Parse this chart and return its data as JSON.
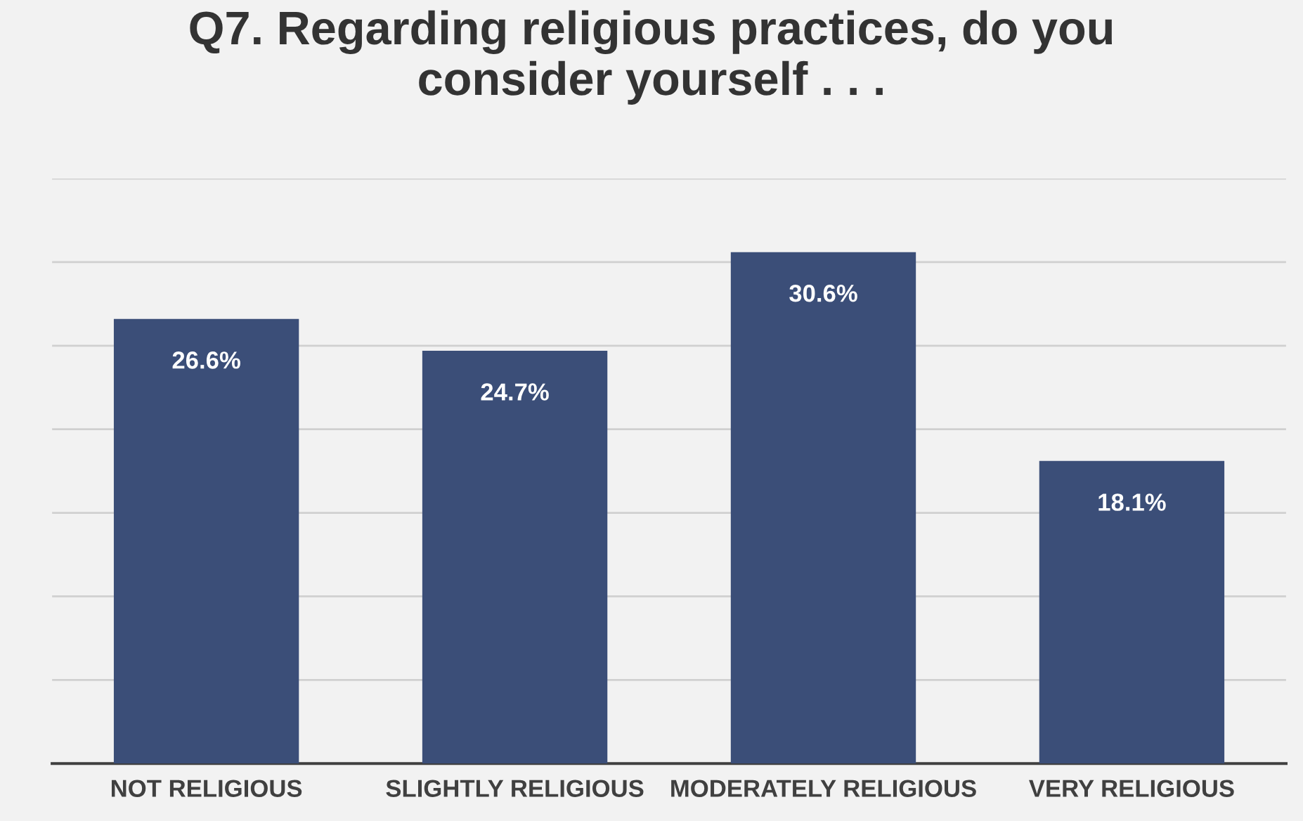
{
  "chart_data": {
    "type": "bar",
    "title": "Q7. Regarding religious practices, do you\nconsider yourself . . .",
    "categories": [
      "NOT RELIGIOUS",
      "SLIGHTLY RELIGIOUS",
      "MODERATELY RELIGIOUS",
      "VERY RELIGIOUS"
    ],
    "values": [
      26.6,
      24.7,
      30.6,
      18.1
    ],
    "value_labels": [
      "26.6%",
      "24.7%",
      "30.6%",
      "18.1%"
    ],
    "color": "#3b4e78",
    "ylim": [
      0,
      35
    ],
    "yticks": [
      {
        "value": 0,
        "label": null
      },
      {
        "value": 5,
        "label": null
      },
      {
        "value": 10,
        "label": null
      },
      {
        "value": 15,
        "label": null
      },
      {
        "value": 20,
        "label": null
      },
      {
        "value": 25,
        "label": null
      },
      {
        "value": 30,
        "label": null
      },
      {
        "value": 35,
        "label": null
      }
    ],
    "grid": "y",
    "tick_labels": "x"
  }
}
